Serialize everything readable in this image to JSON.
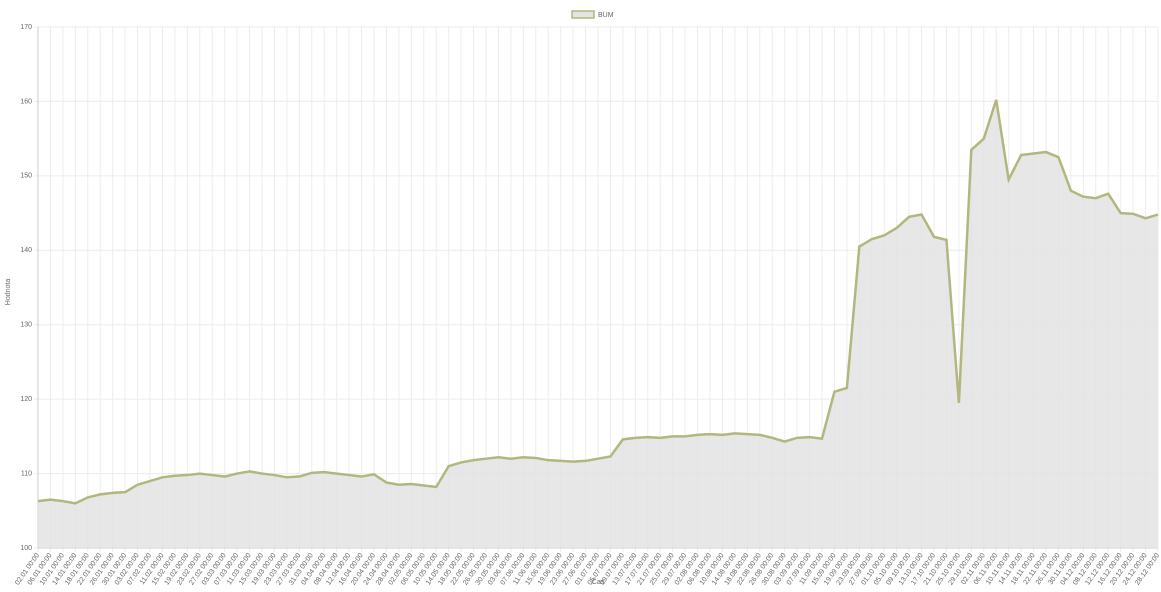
{
  "chart_data": {
    "type": "line",
    "y_label": "Hodnota",
    "x_label": "Čas",
    "categories": [
      "02.01 00:00",
      "06.01 00:00",
      "10.01 00:00",
      "14.01 00:00",
      "18.01 00:00",
      "22.01 00:00",
      "26.01 00:00",
      "30.01 00:00",
      "03.02 00:00",
      "07.02 00:00",
      "11.02 00:00",
      "15.02 00:00",
      "19.02 00:00",
      "23.02 00:00",
      "27.02 00:00",
      "03.03 00:00",
      "07.03 00:00",
      "11.03 00:00",
      "15.03 00:00",
      "19.03 00:00",
      "23.03 00:00",
      "27.03 00:00",
      "31.03 00:00",
      "04.04 00:00",
      "08.04 00:00",
      "12.04 00:00",
      "16.04 00:00",
      "20.04 00:00",
      "24.04 00:00",
      "28.04 00:00",
      "02.05 00:00",
      "06.05 00:00",
      "10.05 00:00",
      "14.05 00:00",
      "18.05 00:00",
      "22.05 00:00",
      "26.05 00:00",
      "30.05 00:00",
      "03.06 00:00",
      "07.06 00:00",
      "11.06 00:00",
      "15.06 00:00",
      "19.06 00:00",
      "23.06 00:00",
      "27.06 00:00",
      "01.07 00:00",
      "05.07 00:00",
      "09.07 00:00",
      "13.07 00:00",
      "17.07 00:00",
      "21.07 00:00",
      "25.07 00:00",
      "29.07 00:00",
      "02.08 00:00",
      "06.08 00:00",
      "10.08 00:00",
      "14.08 00:00",
      "18.08 00:00",
      "22.08 00:00",
      "26.08 00:00",
      "30.08 00:00",
      "03.09 00:00",
      "07.09 00:00",
      "11.09 00:00",
      "15.09 00:00",
      "19.09 00:00",
      "23.09 00:00",
      "27.09 00:00",
      "01.10 00:00",
      "05.10 00:00",
      "09.10 00:00",
      "13.10 00:00",
      "17.10 00:00",
      "21.10 00:00",
      "25.10 00:00",
      "29.10 00:00",
      "02.11 00:00",
      "06.11 00:00",
      "10.11 00:00",
      "14.11 00:00",
      "18.11 00:00",
      "22.11 00:00",
      "26.11 00:00",
      "30.11 00:00",
      "04.12 00:00",
      "08.12 00:00",
      "12.12 00:00",
      "16.12 00:00",
      "20.12 00:00",
      "24.12 00:00",
      "28.12 00:00"
    ],
    "series": [
      {
        "name": "BUM",
        "color": "#b3b67f",
        "fill": "#e3e3e3",
        "values": [
          106.3,
          106.5,
          106.3,
          106.0,
          106.8,
          107.2,
          107.4,
          107.5,
          108.5,
          109.0,
          109.5,
          109.7,
          109.8,
          110.0,
          109.8,
          109.6,
          110.0,
          110.3,
          110.0,
          109.8,
          109.5,
          109.6,
          110.1,
          110.2,
          110.0,
          109.8,
          109.6,
          109.9,
          108.8,
          108.5,
          108.6,
          108.4,
          108.2,
          111.0,
          111.5,
          111.8,
          112.0,
          112.2,
          112.0,
          112.2,
          112.1,
          111.8,
          111.7,
          111.6,
          111.7,
          112.0,
          112.3,
          114.6,
          114.8,
          114.9,
          114.8,
          115.0,
          115.0,
          115.2,
          115.3,
          115.2,
          115.4,
          115.3,
          115.2,
          114.8,
          114.3,
          114.8,
          114.9,
          114.7,
          121.0,
          121.5,
          140.5,
          141.5,
          142.0,
          143.0,
          144.5,
          144.8,
          141.8,
          141.4,
          119.5,
          153.5,
          155.0,
          160.2,
          149.5,
          152.8,
          153.0,
          153.2,
          152.5,
          148.0,
          147.2,
          147.0,
          147.6,
          145.0,
          144.9,
          144.3,
          144.8
        ]
      }
    ],
    "ylim": [
      100,
      170
    ],
    "yticks": [
      100,
      110,
      120,
      130,
      140,
      150,
      160,
      170
    ],
    "grid": true,
    "legend": "top"
  }
}
